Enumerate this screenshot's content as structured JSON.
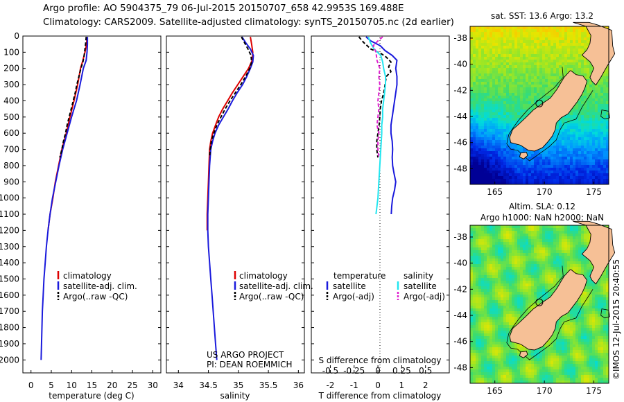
{
  "header": {
    "line1": "Argo profile: AO 5904375_79 06-Jul-2015 20150707_658 42.9953S 169.488E",
    "line2": "Climatology: CARS2009. Satellite-adjusted climatology: synTS_20150705.nc (2d earlier)"
  },
  "colors": {
    "climatology": "#dd0000",
    "satellite": "#1a1adc",
    "argo": "#000000",
    "sal_satellite": "#22e6f0",
    "sal_argo": "#e020d0",
    "land": "#f6c096",
    "coast": "#000000"
  },
  "depth_ticks": [
    0,
    100,
    200,
    300,
    400,
    500,
    600,
    700,
    800,
    900,
    1000,
    1100,
    1200,
    1300,
    1400,
    1500,
    1600,
    1700,
    1800,
    1900,
    2000
  ],
  "chart_data": [
    {
      "id": "temperature",
      "type": "line",
      "xlabel": "temperature (deg C)",
      "ylabel": "",
      "xlim": [
        -2,
        32
      ],
      "ylim": [
        2080,
        0
      ],
      "xticks": [
        0,
        5,
        10,
        15,
        20,
        25,
        30
      ],
      "legend": {
        "placement": "bottom-left",
        "entries": [
          "climatology",
          "satellite-adj. clim.",
          "Argo(..raw -QC)"
        ]
      },
      "series": [
        {
          "name": "climatology",
          "color_key": "climatology",
          "points": [
            [
              13.8,
              5
            ],
            [
              13.7,
              50
            ],
            [
              13.3,
              100
            ],
            [
              12.8,
              150
            ],
            [
              12.2,
              200
            ],
            [
              11.5,
              300
            ],
            [
              10.6,
              400
            ],
            [
              9.6,
              500
            ],
            [
              8.7,
              600
            ],
            [
              7.6,
              700
            ],
            [
              6.8,
              800
            ],
            [
              6.0,
              900
            ],
            [
              5.4,
              1000
            ],
            [
              4.7,
              1100
            ],
            [
              4.2,
              1200
            ]
          ]
        },
        {
          "name": "satellite-adj. clim.",
          "color_key": "satellite",
          "points": [
            [
              13.9,
              5
            ],
            [
              13.9,
              50
            ],
            [
              13.8,
              100
            ],
            [
              13.6,
              150
            ],
            [
              12.9,
              200
            ],
            [
              12.1,
              300
            ],
            [
              11.2,
              400
            ],
            [
              10.0,
              500
            ],
            [
              8.9,
              600
            ],
            [
              7.8,
              700
            ],
            [
              6.9,
              800
            ],
            [
              6.1,
              900
            ],
            [
              5.3,
              1000
            ],
            [
              4.7,
              1100
            ],
            [
              4.2,
              1200
            ],
            [
              3.8,
              1300
            ],
            [
              3.5,
              1400
            ],
            [
              3.2,
              1500
            ],
            [
              3.0,
              1600
            ],
            [
              2.8,
              1700
            ],
            [
              2.7,
              1800
            ],
            [
              2.6,
              1900
            ],
            [
              2.5,
              2000
            ]
          ]
        },
        {
          "name": "Argo(..raw -QC)",
          "color_key": "argo",
          "dashed": true,
          "points": [
            [
              13.6,
              5
            ],
            [
              13.5,
              40
            ],
            [
              13.3,
              80
            ],
            [
              13.1,
              120
            ],
            [
              12.8,
              160
            ],
            [
              12.3,
              200
            ],
            [
              11.8,
              250
            ],
            [
              11.3,
              300
            ],
            [
              10.9,
              350
            ],
            [
              10.4,
              400
            ],
            [
              9.9,
              450
            ],
            [
              9.4,
              500
            ],
            [
              8.9,
              550
            ],
            [
              8.5,
              600
            ],
            [
              8.0,
              650
            ],
            [
              7.6,
              700
            ],
            [
              7.1,
              750
            ]
          ]
        }
      ]
    },
    {
      "id": "salinity",
      "type": "line",
      "xlabel": "salinity",
      "ylabel": "",
      "xlim": [
        33.8,
        36.1
      ],
      "ylim": [
        2080,
        0
      ],
      "xticks": [
        34,
        34.5,
        35,
        35.5,
        36
      ],
      "legend": {
        "placement": "bottom-right",
        "entries": [
          "climatology",
          "satellite-adj. clim.",
          "Argo(..raw -QC)"
        ]
      },
      "series": [
        {
          "name": "climatology",
          "color_key": "climatology",
          "points": [
            [
              35.2,
              5
            ],
            [
              35.22,
              50
            ],
            [
              35.24,
              100
            ],
            [
              35.23,
              150
            ],
            [
              35.17,
              200
            ],
            [
              35.08,
              250
            ],
            [
              34.99,
              300
            ],
            [
              34.9,
              350
            ],
            [
              34.82,
              400
            ],
            [
              34.74,
              450
            ],
            [
              34.67,
              500
            ],
            [
              34.62,
              550
            ],
            [
              34.57,
              600
            ],
            [
              34.54,
              650
            ],
            [
              34.52,
              700
            ],
            [
              34.51,
              800
            ],
            [
              34.5,
              900
            ],
            [
              34.49,
              1000
            ],
            [
              34.48,
              1100
            ],
            [
              34.48,
              1200
            ]
          ]
        },
        {
          "name": "satellite-adj. clim.",
          "color_key": "satellite",
          "points": [
            [
              35.06,
              5
            ],
            [
              35.12,
              40
            ],
            [
              35.2,
              80
            ],
            [
              35.25,
              120
            ],
            [
              35.24,
              160
            ],
            [
              35.2,
              200
            ],
            [
              35.14,
              250
            ],
            [
              35.07,
              300
            ],
            [
              34.98,
              350
            ],
            [
              34.9,
              400
            ],
            [
              34.83,
              450
            ],
            [
              34.75,
              500
            ],
            [
              34.67,
              550
            ],
            [
              34.61,
              600
            ],
            [
              34.57,
              650
            ],
            [
              34.54,
              700
            ],
            [
              34.52,
              800
            ],
            [
              34.51,
              900
            ],
            [
              34.5,
              1000
            ],
            [
              34.49,
              1100
            ],
            [
              34.49,
              1200
            ],
            [
              34.5,
              1300
            ],
            [
              34.52,
              1400
            ],
            [
              34.54,
              1500
            ],
            [
              34.56,
              1600
            ],
            [
              34.58,
              1700
            ],
            [
              34.6,
              1800
            ],
            [
              34.62,
              1900
            ],
            [
              34.64,
              2000
            ]
          ]
        },
        {
          "name": "Argo(..raw -QC)",
          "color_key": "argo",
          "dashed": true,
          "points": [
            [
              35.05,
              5
            ],
            [
              35.1,
              40
            ],
            [
              35.16,
              80
            ],
            [
              35.21,
              120
            ],
            [
              35.22,
              160
            ],
            [
              35.19,
              200
            ],
            [
              35.12,
              250
            ],
            [
              35.04,
              300
            ],
            [
              34.95,
              350
            ],
            [
              34.86,
              400
            ],
            [
              34.78,
              450
            ],
            [
              34.71,
              500
            ],
            [
              34.64,
              550
            ],
            [
              34.59,
              600
            ],
            [
              34.55,
              650
            ],
            [
              34.53,
              700
            ],
            [
              34.52,
              750
            ]
          ]
        }
      ]
    },
    {
      "id": "difference",
      "type": "line",
      "xlabel": "T difference from climatology",
      "x2label": "S difference from climatology",
      "xlim": [
        -2.8,
        3.0
      ],
      "x2lim": [
        -0.7,
        0.75
      ],
      "ylim": [
        2080,
        0
      ],
      "xticks": [
        -2,
        -1,
        0,
        1,
        2
      ],
      "x2ticks": [
        -0.5,
        -0.25,
        0,
        0.25,
        0.5
      ],
      "x2ticklabels": [
        "-0.5",
        "-0.25",
        "0",
        "0.25",
        "0.5"
      ],
      "legend": {
        "placement": "bottom",
        "temperature_title": "temperature",
        "salinity_title": "salinity",
        "entries": [
          "satellite",
          "Argo(-adj)",
          "satellite",
          "Argo(-adj)"
        ]
      },
      "series": [
        {
          "name": "temperature satellite",
          "color_key": "satellite",
          "points": [
            [
              -0.5,
              5
            ],
            [
              -0.3,
              30
            ],
            [
              0.1,
              60
            ],
            [
              0.3,
              90
            ],
            [
              0.6,
              120
            ],
            [
              0.8,
              150
            ],
            [
              0.75,
              200
            ],
            [
              0.8,
              250
            ],
            [
              0.8,
              300
            ],
            [
              0.75,
              350
            ],
            [
              0.7,
              400
            ],
            [
              0.65,
              450
            ],
            [
              0.6,
              500
            ],
            [
              0.55,
              550
            ],
            [
              0.55,
              600
            ],
            [
              0.6,
              650
            ],
            [
              0.62,
              700
            ],
            [
              0.6,
              750
            ],
            [
              0.62,
              800
            ],
            [
              0.68,
              850
            ],
            [
              0.75,
              900
            ],
            [
              0.7,
              950
            ],
            [
              0.62,
              1000
            ],
            [
              0.58,
              1050
            ],
            [
              0.56,
              1100
            ]
          ]
        },
        {
          "name": "temperature Argo(-adj)",
          "color_key": "argo",
          "dashed": true,
          "points": [
            [
              -0.8,
              5
            ],
            [
              -0.6,
              40
            ],
            [
              -0.3,
              80
            ],
            [
              0.15,
              110
            ],
            [
              0.35,
              130
            ],
            [
              0.55,
              160
            ],
            [
              0.45,
              190
            ],
            [
              0.55,
              220
            ],
            [
              0.35,
              250
            ],
            [
              0.3,
              300
            ],
            [
              0.25,
              350
            ],
            [
              0.15,
              400
            ],
            [
              0.1,
              450
            ],
            [
              0.08,
              500
            ],
            [
              0.05,
              550
            ],
            [
              0.0,
              600
            ],
            [
              -0.05,
              650
            ],
            [
              -0.05,
              700
            ],
            [
              0.0,
              750
            ]
          ]
        },
        {
          "name": "salinity satellite",
          "color_key": "sal_satellite",
          "axis": "x2",
          "points": [
            [
              -0.1,
              5
            ],
            [
              -0.08,
              40
            ],
            [
              -0.04,
              80
            ],
            [
              0.03,
              120
            ],
            [
              0.05,
              160
            ],
            [
              0.06,
              200
            ],
            [
              0.08,
              250
            ],
            [
              0.08,
              300
            ],
            [
              0.07,
              350
            ],
            [
              0.06,
              400
            ],
            [
              0.05,
              450
            ],
            [
              0.05,
              500
            ],
            [
              0.04,
              550
            ],
            [
              0.04,
              600
            ],
            [
              0.03,
              700
            ],
            [
              0.02,
              800
            ],
            [
              0.01,
              900
            ],
            [
              0.0,
              1000
            ],
            [
              -0.02,
              1100
            ]
          ]
        },
        {
          "name": "salinity Argo(-adj)",
          "color_key": "sal_argo",
          "dashed": true,
          "axis": "x2",
          "points": [
            [
              0.05,
              5
            ],
            [
              0.0,
              30
            ],
            [
              -0.05,
              60
            ],
            [
              -0.02,
              100
            ],
            [
              -0.01,
              150
            ],
            [
              0.02,
              200
            ],
            [
              0.01,
              250
            ],
            [
              0.02,
              300
            ],
            [
              0.01,
              350
            ],
            [
              0.0,
              400
            ],
            [
              0.01,
              450
            ],
            [
              0.0,
              500
            ],
            [
              -0.01,
              550
            ],
            [
              0.01,
              600
            ],
            [
              0.0,
              650
            ],
            [
              0.0,
              700
            ],
            [
              0.01,
              750
            ]
          ]
        }
      ]
    },
    {
      "id": "sst_map",
      "type": "heatmap",
      "title": "sat. SST: 13.6  Argo: 13.2",
      "xlim": [
        162.5,
        176.5
      ],
      "ylim": [
        -49.2,
        -37.1
      ],
      "xticks": [
        165,
        170,
        175
      ],
      "yticks": [
        -38,
        -40,
        -42,
        -44,
        -46,
        -48
      ],
      "marker": {
        "lon": 169.49,
        "lat": -43.0
      }
    },
    {
      "id": "sla_map",
      "type": "heatmap",
      "title": "Altim. SLA: 0.12",
      "subtitle": "Argo h1000: NaN h2000: NaN",
      "xlim": [
        162.5,
        176.5
      ],
      "ylim": [
        -49.2,
        -37.1
      ],
      "xticks": [
        165,
        170,
        175
      ],
      "yticks": [
        -38,
        -40,
        -42,
        -44,
        -46,
        -48
      ],
      "marker": {
        "lon": 169.49,
        "lat": -43.0
      }
    }
  ],
  "annotations": {
    "project_line1": "US ARGO PROJECT",
    "project_line2": "PI: DEAN ROEMMICH",
    "credit": "©IMOS 12-Jul-2015 20:40:55"
  }
}
